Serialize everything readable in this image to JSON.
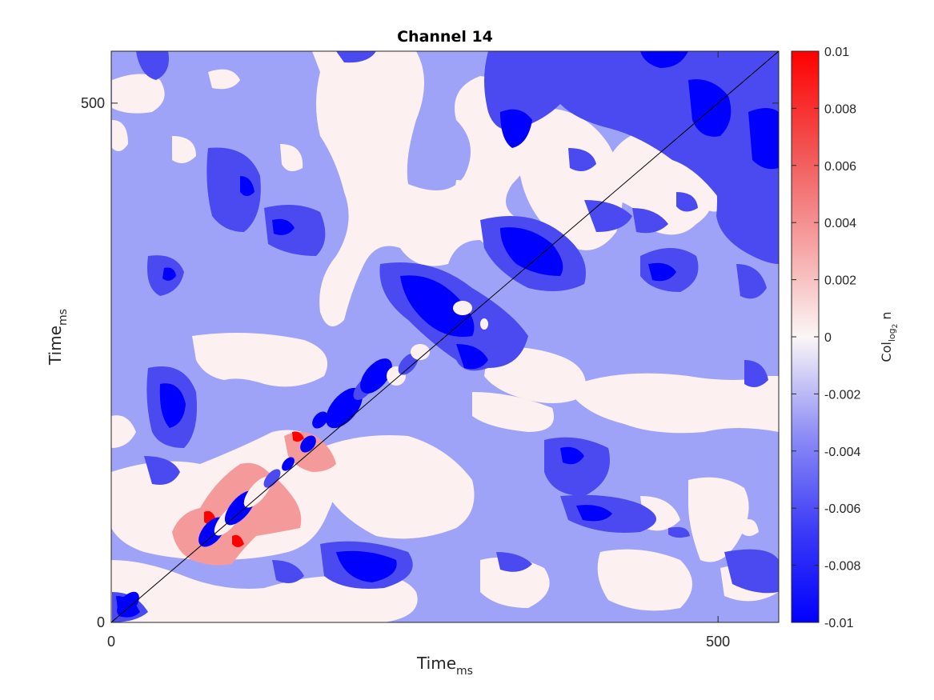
{
  "chart_data": {
    "type": "heatmap",
    "title": "Channel 14",
    "xlabel": {
      "main": "Time",
      "sub": "ms"
    },
    "ylabel": {
      "main": "Time",
      "sub": "ms"
    },
    "xlim": [
      0,
      550
    ],
    "ylim": [
      0,
      550
    ],
    "x_ticks": [
      0,
      500
    ],
    "y_ticks": [
      0,
      500
    ],
    "x_tick_labels": [
      "0",
      "500"
    ],
    "y_tick_labels": [
      "0",
      "500"
    ],
    "diagonal_line": true,
    "colorbar": {
      "label": {
        "main": "Col",
        "sub": "log",
        "subsub": "2",
        "tail": " n"
      },
      "range": [
        -0.01,
        0.01
      ],
      "ticks": [
        0.01,
        0.008,
        0.006,
        0.004,
        0.002,
        0,
        -0.002,
        -0.004,
        -0.006,
        -0.008,
        -0.01
      ],
      "tick_labels": [
        "0.01",
        "0.008",
        "0.006",
        "0.004",
        "0.002",
        "0",
        "-0.002",
        "-0.004",
        "-0.006",
        "-0.008",
        "-0.01"
      ],
      "colors": [
        "#0000ff",
        "#4040f7",
        "#9c9cf5",
        "#fdf2f2",
        "#f8a0a0",
        "#f25050",
        "#ff0000"
      ]
    },
    "levels": [
      {
        "value": -0.008,
        "color": "#0000ff"
      },
      {
        "value": -0.006,
        "color": "#4a4af0"
      },
      {
        "value": -0.004,
        "color": "#9fa3f7"
      },
      {
        "value": 0.0,
        "color": "#fdf0f0"
      },
      {
        "value": 0.002,
        "color": "#f59a9a"
      },
      {
        "value": 0.006,
        "color": "#ff0000"
      }
    ]
  }
}
